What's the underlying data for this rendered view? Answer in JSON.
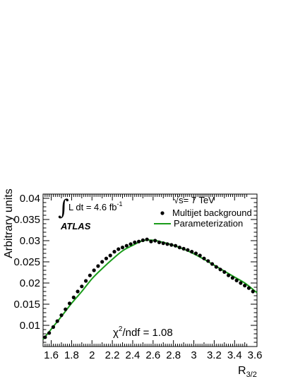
{
  "chart_data": {
    "type": "scatter",
    "xlabel": "R",
    "xlabel_sub": "3/2",
    "ylabel": "Arbitrary units",
    "xlim": [
      1.52,
      3.62
    ],
    "ylim": [
      0.005,
      0.041
    ],
    "x_ticks": [
      "1.6",
      "1.8",
      "2",
      "2.2",
      "2.4",
      "2.6",
      "2.8",
      "3",
      "3.2",
      "3.4",
      "3.6"
    ],
    "x_tick_values": [
      1.6,
      1.8,
      2.0,
      2.2,
      2.4,
      2.6,
      2.8,
      3.0,
      3.2,
      3.4,
      3.6
    ],
    "y_ticks": [
      "0.01",
      "0.015",
      "0.02",
      "0.025",
      "0.03",
      "0.035",
      "0.04"
    ],
    "y_tick_values": [
      0.01,
      0.015,
      0.02,
      0.025,
      0.03,
      0.035,
      0.04
    ],
    "grid": false,
    "legend_position": "top-right",
    "series": [
      {
        "name": "Multijet background",
        "kind": "points",
        "color": "#000000",
        "x": [
          1.54,
          1.58,
          1.62,
          1.66,
          1.7,
          1.74,
          1.78,
          1.82,
          1.86,
          1.9,
          1.94,
          1.98,
          2.02,
          2.06,
          2.1,
          2.14,
          2.18,
          2.22,
          2.26,
          2.3,
          2.34,
          2.38,
          2.42,
          2.46,
          2.5,
          2.54,
          2.58,
          2.62,
          2.66,
          2.7,
          2.74,
          2.78,
          2.82,
          2.86,
          2.9,
          2.94,
          2.98,
          3.02,
          3.06,
          3.1,
          3.14,
          3.18,
          3.22,
          3.26,
          3.3,
          3.34,
          3.38,
          3.42,
          3.46,
          3.5,
          3.54,
          3.58
        ],
        "y": [
          0.0072,
          0.0082,
          0.0096,
          0.011,
          0.0124,
          0.0138,
          0.0152,
          0.0166,
          0.018,
          0.0192,
          0.0205,
          0.0218,
          0.023,
          0.024,
          0.025,
          0.0258,
          0.0265,
          0.0274,
          0.028,
          0.0284,
          0.0288,
          0.0292,
          0.0296,
          0.0298,
          0.0301,
          0.0303,
          0.0298,
          0.03,
          0.0296,
          0.0294,
          0.0292,
          0.029,
          0.0288,
          0.0284,
          0.0281,
          0.0278,
          0.0274,
          0.027,
          0.0265,
          0.0258,
          0.0252,
          0.0245,
          0.0238,
          0.0232,
          0.0226,
          0.0218,
          0.0212,
          0.0206,
          0.02,
          0.0194,
          0.0188,
          0.018
        ]
      },
      {
        "name": "Parameterization",
        "kind": "line",
        "color": "#1a9c1a",
        "x": [
          1.52,
          1.6,
          1.7,
          1.8,
          1.9,
          2.0,
          2.1,
          2.2,
          2.3,
          2.4,
          2.5,
          2.6,
          2.7,
          2.8,
          2.9,
          3.0,
          3.1,
          3.2,
          3.3,
          3.4,
          3.5,
          3.62
        ],
        "y": [
          0.0067,
          0.0091,
          0.0121,
          0.0152,
          0.018,
          0.021,
          0.0234,
          0.0256,
          0.0276,
          0.0289,
          0.03,
          0.0301,
          0.0296,
          0.0289,
          0.028,
          0.0269,
          0.0256,
          0.0242,
          0.0228,
          0.0214,
          0.02,
          0.0177
        ]
      }
    ]
  },
  "annotations": {
    "integral_symbol": "∫",
    "luminosity": "L dt = 4.6 fb",
    "luminosity_sup": "-1",
    "atlas": "ATLAS",
    "energy": "√s= 7 TeV",
    "chi2_symbol": "χ",
    "chi2_sup": "2",
    "chi2_text": "/ndf = 1.08"
  }
}
